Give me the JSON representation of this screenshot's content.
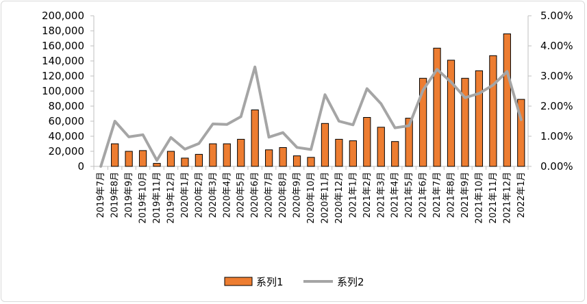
{
  "chart_data": {
    "type": "bar",
    "categories": [
      "2019年7月",
      "2019年8月",
      "2019年9月",
      "2019年10月",
      "2019年11月",
      "2019年12月",
      "2020年1月",
      "2020年2月",
      "2020年3月",
      "2020年4月",
      "2020年5月",
      "2020年6月",
      "2020年7月",
      "2020年8月",
      "2020年9月",
      "2020年10月",
      "2020年11月",
      "2020年12月",
      "2021年1月",
      "2021年2月",
      "2021年3月",
      "2021年4月",
      "2021年5月",
      "2021年6月",
      "2021年7月",
      "2021年8月",
      "2021年9月",
      "2021年10月",
      "2021年11月",
      "2021年12月",
      "2022年1月"
    ],
    "series": [
      {
        "name": "系列1",
        "type": "bar",
        "axis": "left",
        "color": "#ed7d31",
        "values": [
          0,
          30000,
          20000,
          21000,
          4000,
          20000,
          11000,
          16000,
          30000,
          30000,
          36000,
          75000,
          22000,
          25000,
          14000,
          12000,
          57000,
          36000,
          34000,
          65000,
          52000,
          33000,
          64000,
          117000,
          157000,
          141000,
          117000,
          127000,
          147000,
          176000,
          89000
        ]
      },
      {
        "name": "系列2",
        "type": "line",
        "axis": "right",
        "color": "#a5a5a5",
        "values": [
          0.0,
          0.015,
          0.0098,
          0.0105,
          0.002,
          0.0096,
          0.0057,
          0.0076,
          0.0141,
          0.0139,
          0.0165,
          0.033,
          0.0097,
          0.0112,
          0.0063,
          0.0056,
          0.0238,
          0.015,
          0.0138,
          0.0258,
          0.0208,
          0.0128,
          0.0135,
          0.0253,
          0.0322,
          0.028,
          0.0228,
          0.0242,
          0.027,
          0.0315,
          0.0155
        ]
      }
    ],
    "yleft": {
      "min": 0,
      "max": 200000,
      "ticks": [
        "0",
        "20,000",
        "40,000",
        "60,000",
        "80,000",
        "100,000",
        "120,000",
        "140,000",
        "160,000",
        "180,000",
        "200,000"
      ]
    },
    "yright": {
      "min": 0,
      "max": 0.05,
      "ticks": [
        "0.00%",
        "1.00%",
        "2.00%",
        "3.00%",
        "4.00%",
        "5.00%"
      ]
    },
    "grid": false,
    "legend": "bottom"
  }
}
